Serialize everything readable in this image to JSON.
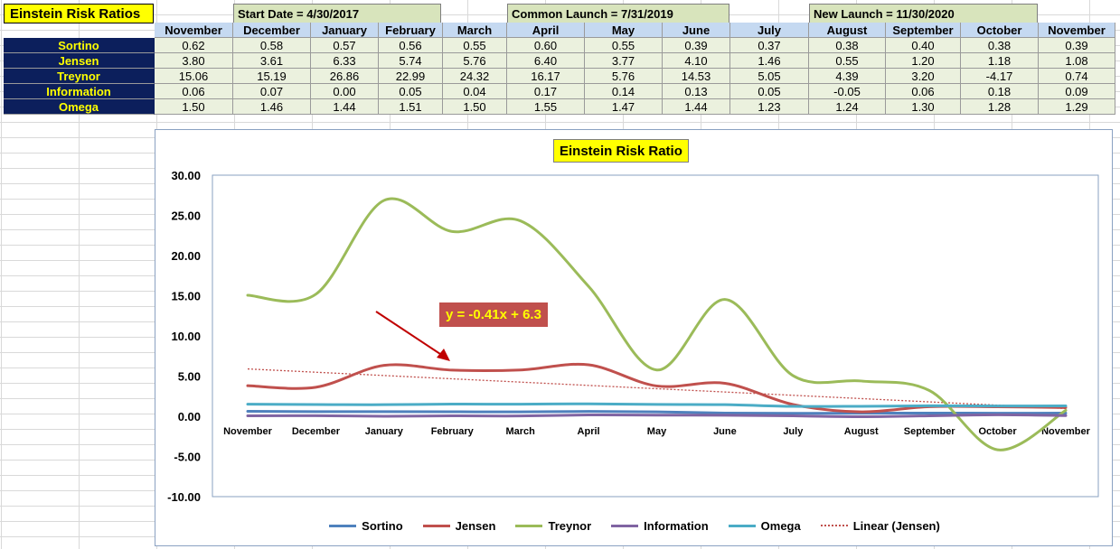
{
  "sheet": {
    "title": "Einstein Risk Ratios",
    "bands": [
      {
        "label": "Start Date = 4/30/2017"
      },
      {
        "label": "Common Launch = 7/31/2019"
      },
      {
        "label": "New Launch = 11/30/2020"
      }
    ]
  },
  "chart_data": {
    "type": "line",
    "title": "Einstein Risk Ratio",
    "categories": [
      "November",
      "December",
      "January",
      "February",
      "March",
      "April",
      "May",
      "June",
      "July",
      "August",
      "September",
      "October",
      "November"
    ],
    "series": [
      {
        "name": "Sortino",
        "color": "#4f81bd",
        "values": [
          0.62,
          0.58,
          0.57,
          0.56,
          0.55,
          0.6,
          0.55,
          0.39,
          0.37,
          0.38,
          0.4,
          0.38,
          0.39
        ]
      },
      {
        "name": "Jensen",
        "color": "#c0504d",
        "values": [
          3.8,
          3.61,
          6.33,
          5.74,
          5.76,
          6.4,
          3.77,
          4.1,
          1.46,
          0.55,
          1.2,
          1.18,
          1.08
        ]
      },
      {
        "name": "Treynor",
        "color": "#9bbb59",
        "values": [
          15.06,
          15.19,
          26.86,
          22.99,
          24.32,
          16.17,
          5.76,
          14.53,
          5.05,
          4.39,
          3.2,
          -4.17,
          0.74
        ]
      },
      {
        "name": "Information",
        "color": "#8064a2",
        "values": [
          0.06,
          0.07,
          0.0,
          0.05,
          0.04,
          0.17,
          0.14,
          0.13,
          0.05,
          -0.05,
          0.06,
          0.18,
          0.09
        ]
      },
      {
        "name": "Omega",
        "color": "#4bacc6",
        "values": [
          1.5,
          1.46,
          1.44,
          1.51,
          1.5,
          1.55,
          1.47,
          1.44,
          1.23,
          1.24,
          1.3,
          1.28,
          1.29
        ]
      }
    ],
    "trendline": {
      "name": "Linear (Jensen)",
      "color": "#c0504d",
      "slope": -0.41,
      "intercept": 6.3,
      "equation_label": "y = -0.41x + 6.3"
    },
    "ylim": [
      -10,
      30
    ],
    "yticks": [
      "30.00",
      "25.00",
      "20.00",
      "15.00",
      "10.00",
      "5.00",
      "0.00",
      "-5.00",
      "-10.00"
    ],
    "grid": false,
    "legend": "bottom"
  }
}
